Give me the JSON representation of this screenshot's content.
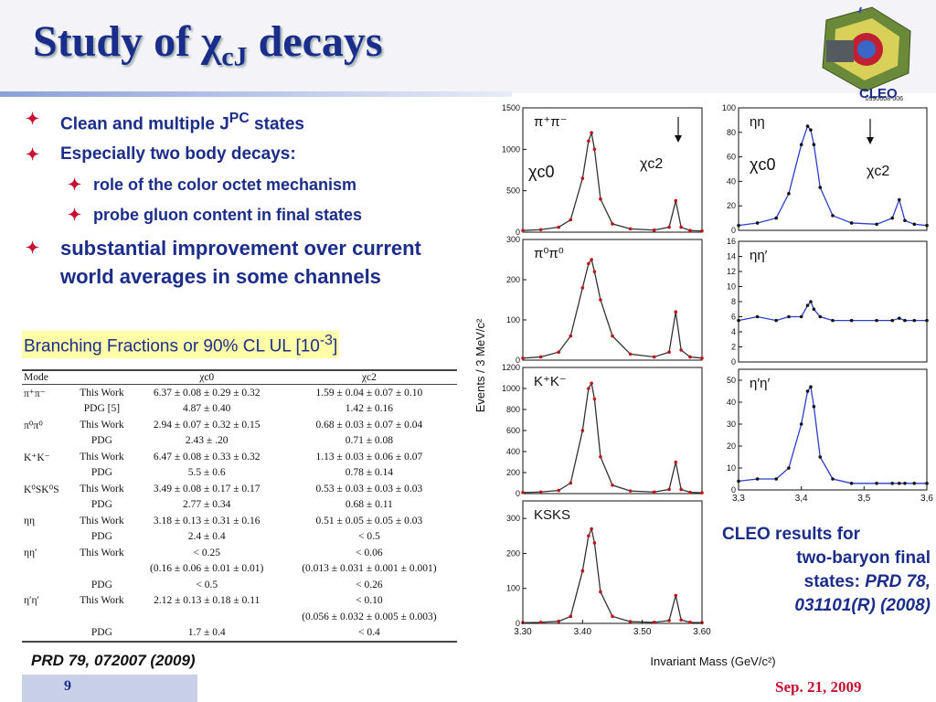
{
  "title": {
    "main": "Study of χ",
    "sub": "cJ",
    "tail": " decays"
  },
  "logo": {
    "label": "CLEO",
    "code": "0990608-006"
  },
  "bullets": [
    {
      "text": "Clean and multiple J",
      "sup": "PC",
      "after": " states"
    },
    {
      "text": "Especially two body decays:"
    }
  ],
  "subbullets": [
    "role of the color octet mechanism",
    "probe gluon content in final states"
  ],
  "bullet_improvement": "substantial improvement over current world averages in some channels",
  "bf_label": {
    "text": "Branching Fractions or 90% CL UL [10",
    "sup": "-3",
    "after": "]"
  },
  "table": {
    "headers": [
      "Mode",
      "",
      "χc0",
      "χc2"
    ],
    "rows": [
      [
        "π⁺π⁻",
        "This Work",
        "6.37 ± 0.08 ± 0.29 ± 0.32",
        "1.59 ± 0.04 ± 0.07 ± 0.10"
      ],
      [
        "",
        "PDG [5]",
        "4.87 ± 0.40",
        "1.42 ± 0.16"
      ],
      [
        "π⁰π⁰",
        "This Work",
        "2.94 ± 0.07 ± 0.32 ± 0.15",
        "0.68 ± 0.03 ± 0.07 ± 0.04"
      ],
      [
        "",
        "PDG",
        "2.43 ± .20",
        "0.71 ± 0.08"
      ],
      [
        "K⁺K⁻",
        "This Work",
        "6.47 ± 0.08 ± 0.33 ± 0.32",
        "1.13 ± 0.03 ± 0.06 ± 0.07"
      ],
      [
        "",
        "PDG",
        "5.5 ± 0.6",
        "0.78 ± 0.14"
      ],
      [
        "K⁰SK⁰S",
        "This Work",
        "3.49 ± 0.08 ± 0.17 ± 0.17",
        "0.53 ± 0.03 ± 0.03 ± 0.03"
      ],
      [
        "",
        "PDG",
        "2.77 ± 0.34",
        "0.68 ± 0.11"
      ],
      [
        "ηη",
        "This Work",
        "3.18 ± 0.13 ± 0.31 ± 0.16",
        "0.51 ± 0.05 ± 0.05 ± 0.03"
      ],
      [
        "",
        "PDG",
        "2.4 ± 0.4",
        "< 0.5"
      ],
      [
        "ηη′",
        "This Work",
        "< 0.25",
        "< 0.06"
      ],
      [
        "",
        "",
        "(0.16 ± 0.06 ± 0.01 ± 0.01)",
        "(0.013 ± 0.031 ± 0.001 ± 0.001)"
      ],
      [
        "",
        "PDG",
        "< 0.5",
        "< 0.26"
      ],
      [
        "η′η′",
        "This Work",
        "2.12 ± 0.13 ± 0.18 ± 0.11",
        "< 0.10"
      ],
      [
        "",
        "",
        "",
        "(0.056 ± 0.032 ± 0.005 ± 0.003)"
      ],
      [
        "",
        "PDG",
        "1.7 ± 0.4",
        "< 0.4"
      ]
    ]
  },
  "reference": "PRD 79, 072007 (2009)",
  "page_number": "9",
  "date": "Sep. 21, 2009",
  "cleo_results": {
    "line1": "CLEO results for",
    "line2": "two-baryon final",
    "line3a": "states: ",
    "line3b": "PRD 78,",
    "line4": "031101(R) (2008)"
  },
  "chart_data": [
    {
      "type": "line",
      "panel": "left column (4 stacked histograms)",
      "ylabel": "Events / 3 MeV/c²",
      "xlabel": "Invariant Mass (GeV/c²)",
      "xlim": [
        3.3,
        3.6
      ],
      "x_ticks": [
        "3.30",
        "3.40",
        "3.50",
        "3.60"
      ],
      "peak_labels": [
        "χc0",
        "χc2"
      ],
      "colors": {
        "data": "#c0101a",
        "fit": "#333333"
      },
      "series": [
        {
          "name": "π⁺π⁻",
          "ylim": [
            0,
            1500
          ],
          "y_ticks": [
            "0",
            "500",
            "1000",
            "1500"
          ],
          "peak_c0": 1200,
          "peak_c2": 380,
          "x": [
            3.3,
            3.33,
            3.36,
            3.38,
            3.4,
            3.41,
            3.415,
            3.42,
            3.43,
            3.45,
            3.48,
            3.52,
            3.545,
            3.556,
            3.565,
            3.58,
            3.6
          ],
          "y": [
            20,
            30,
            60,
            150,
            650,
            1100,
            1200,
            1000,
            400,
            100,
            40,
            25,
            60,
            380,
            60,
            20,
            15
          ]
        },
        {
          "name": "π⁰π⁰",
          "ylim": [
            0,
            300
          ],
          "y_ticks": [
            "0",
            "100",
            "200",
            "300"
          ],
          "peak_c0": 250,
          "peak_c2": 120,
          "x": [
            3.3,
            3.33,
            3.36,
            3.38,
            3.4,
            3.41,
            3.415,
            3.42,
            3.43,
            3.45,
            3.48,
            3.52,
            3.545,
            3.556,
            3.565,
            3.58,
            3.6
          ],
          "y": [
            5,
            8,
            20,
            60,
            180,
            240,
            250,
            220,
            150,
            60,
            15,
            8,
            20,
            120,
            25,
            8,
            5
          ]
        },
        {
          "name": "K⁺K⁻",
          "ylim": [
            0,
            1200
          ],
          "y_ticks": [
            "0",
            "200",
            "400",
            "600",
            "800",
            "1000",
            "1200"
          ],
          "peak_c0": 1050,
          "peak_c2": 300,
          "x": [
            3.3,
            3.33,
            3.36,
            3.38,
            3.4,
            3.41,
            3.415,
            3.42,
            3.43,
            3.45,
            3.48,
            3.52,
            3.545,
            3.556,
            3.565,
            3.58,
            3.6
          ],
          "y": [
            10,
            15,
            30,
            100,
            600,
            1000,
            1050,
            900,
            350,
            80,
            25,
            15,
            40,
            300,
            40,
            12,
            8
          ]
        },
        {
          "name": "KSKS",
          "ylim": [
            0,
            350
          ],
          "y_ticks": [
            "0",
            "100",
            "200",
            "300"
          ],
          "peak_c0": 270,
          "peak_c2": 80,
          "x": [
            3.3,
            3.33,
            3.36,
            3.38,
            3.4,
            3.41,
            3.415,
            3.42,
            3.43,
            3.45,
            3.48,
            3.52,
            3.545,
            3.556,
            3.565,
            3.58,
            3.6
          ],
          "y": [
            2,
            3,
            6,
            20,
            150,
            250,
            270,
            230,
            90,
            20,
            5,
            3,
            8,
            80,
            10,
            3,
            2
          ]
        }
      ]
    },
    {
      "type": "line",
      "panel": "right column (3 stacked histograms)",
      "xlim": [
        3.3,
        3.6
      ],
      "x_ticks": [
        "3,3",
        "3,4",
        "3,5",
        "3,6"
      ],
      "peak_labels": [
        "χc0",
        "χc2"
      ],
      "colors": {
        "data": "#111111",
        "fit": "#2a3fcc"
      },
      "series": [
        {
          "name": "ηη",
          "ylim": [
            0,
            100
          ],
          "y_ticks": [
            "0",
            "20",
            "40",
            "60",
            "80",
            "100"
          ],
          "x": [
            3.3,
            3.33,
            3.36,
            3.38,
            3.4,
            3.41,
            3.415,
            3.42,
            3.43,
            3.45,
            3.48,
            3.52,
            3.545,
            3.556,
            3.565,
            3.58,
            3.6
          ],
          "y": [
            4,
            6,
            10,
            30,
            70,
            85,
            82,
            70,
            35,
            12,
            6,
            5,
            10,
            25,
            8,
            5,
            4
          ]
        },
        {
          "name": "ηη′",
          "ylim": [
            0,
            16
          ],
          "y_ticks": [
            "0",
            "2",
            "4",
            "6",
            "8",
            "10",
            "12",
            "14",
            "16"
          ],
          "x": [
            3.3,
            3.33,
            3.36,
            3.38,
            3.4,
            3.41,
            3.415,
            3.42,
            3.43,
            3.45,
            3.48,
            3.52,
            3.545,
            3.556,
            3.565,
            3.58,
            3.6
          ],
          "y": [
            5.5,
            6,
            5.5,
            6,
            6,
            7.5,
            8,
            7,
            6,
            5.5,
            5.5,
            5.5,
            5.5,
            5.8,
            5.5,
            5.5,
            5.5
          ]
        },
        {
          "name": "η′η′",
          "ylim": [
            0,
            55
          ],
          "y_ticks": [
            "0",
            "10",
            "20",
            "30",
            "40",
            "50"
          ],
          "x": [
            3.3,
            3.33,
            3.36,
            3.38,
            3.4,
            3.41,
            3.415,
            3.42,
            3.43,
            3.45,
            3.48,
            3.52,
            3.545,
            3.556,
            3.565,
            3.58,
            3.6
          ],
          "y": [
            4,
            5,
            5,
            10,
            30,
            45,
            47,
            38,
            15,
            5,
            3,
            3,
            3,
            3,
            3,
            3,
            3
          ]
        }
      ]
    }
  ]
}
